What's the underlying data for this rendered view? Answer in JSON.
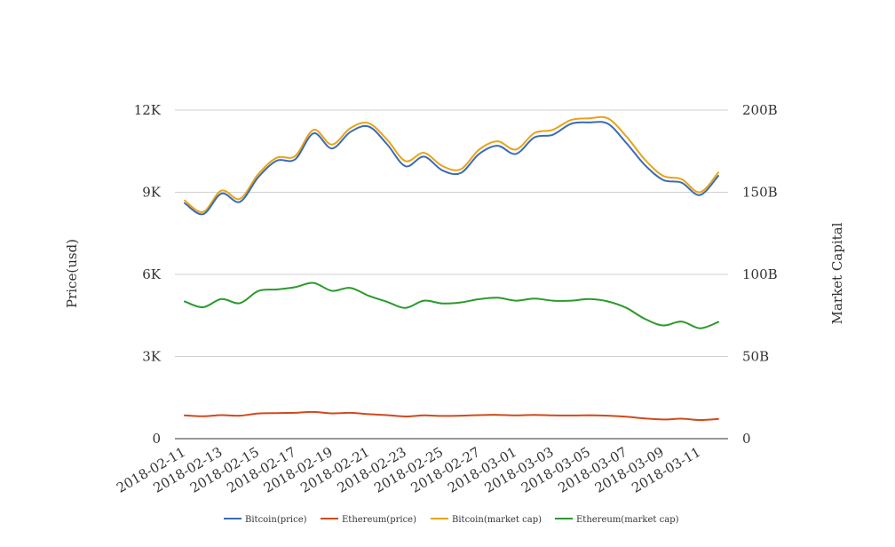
{
  "chart_data": {
    "type": "line",
    "ylabel": "Price(usd)",
    "y2label": "Market Capital",
    "grid": true,
    "legend_position": "bottom-center",
    "y_axis": {
      "min": 0,
      "max": 12000,
      "ticks": [
        0,
        3000,
        6000,
        9000,
        12000
      ],
      "tick_labels": [
        "0",
        "3K",
        "6K",
        "9K",
        "12K"
      ]
    },
    "y2_axis": {
      "min": 0,
      "max": 200000000000,
      "ticks": [
        0,
        50000000000,
        100000000000,
        150000000000,
        200000000000
      ],
      "tick_labels": [
        "0",
        "50B",
        "100B",
        "150B",
        "200B"
      ]
    },
    "x_tick_labels": [
      "2018-02-11",
      "2018-02-13",
      "2018-02-15",
      "2018-02-17",
      "2018-02-19",
      "2018-02-21",
      "2018-02-23",
      "2018-02-25",
      "2018-02-27",
      "2018-03-01",
      "2018-03-03",
      "2018-03-05",
      "2018-03-07",
      "2018-03-09",
      "2018-03-11"
    ],
    "x": [
      "2018-02-11",
      "2018-02-12",
      "2018-02-13",
      "2018-02-14",
      "2018-02-15",
      "2018-02-16",
      "2018-02-17",
      "2018-02-18",
      "2018-02-19",
      "2018-02-20",
      "2018-02-21",
      "2018-02-22",
      "2018-02-23",
      "2018-02-24",
      "2018-02-25",
      "2018-02-26",
      "2018-02-27",
      "2018-02-28",
      "2018-03-01",
      "2018-03-02",
      "2018-03-03",
      "2018-03-04",
      "2018-03-05",
      "2018-03-06",
      "2018-03-07",
      "2018-03-08",
      "2018-03-09",
      "2018-03-10",
      "2018-03-11",
      "2018-03-12"
    ],
    "series": [
      {
        "name": "Bitcoin(price)",
        "axis": "left",
        "color": "#3b6ab5",
        "values": [
          8600,
          8200,
          8950,
          8650,
          9550,
          10150,
          10200,
          11150,
          10600,
          11200,
          11400,
          10750,
          9950,
          10300,
          9800,
          9700,
          10400,
          10700,
          10400,
          11000,
          11100,
          11500,
          11550,
          11500,
          10800,
          10000,
          9450,
          9350,
          8900,
          9600
        ]
      },
      {
        "name": "Ethereum(price)",
        "axis": "left",
        "color": "#d04a1c",
        "values": [
          850,
          820,
          860,
          840,
          920,
          935,
          945,
          975,
          925,
          945,
          895,
          860,
          810,
          850,
          830,
          840,
          860,
          870,
          850,
          865,
          850,
          845,
          855,
          840,
          800,
          740,
          700,
          730,
          680,
          720
        ]
      },
      {
        "name": "Bitcoin(market cap)",
        "axis": "right",
        "color": "#e8a317",
        "values": [
          145000000000,
          138000000000,
          151000000000,
          146000000000,
          161000000000,
          171000000000,
          172000000000,
          188000000000,
          179000000000,
          189000000000,
          192000000000,
          182000000000,
          169000000000,
          174000000000,
          166000000000,
          164000000000,
          176000000000,
          181000000000,
          176000000000,
          186000000000,
          188000000000,
          194000000000,
          195000000000,
          195000000000,
          184000000000,
          170000000000,
          160000000000,
          158000000000,
          150000000000,
          162000000000
        ]
      },
      {
        "name": "Ethereum(market cap)",
        "axis": "right",
        "color": "#2a9a2a",
        "values": [
          83500000000,
          80000000000,
          85000000000,
          82500000000,
          89900000000,
          90800000000,
          92200000000,
          94800000000,
          90000000000,
          91800000000,
          87000000000,
          83300000000,
          79600000000,
          84000000000,
          82300000000,
          82900000000,
          84900000000,
          85800000000,
          84000000000,
          85300000000,
          84000000000,
          84000000000,
          85000000000,
          83500000000,
          79600000000,
          73000000000,
          68900000000,
          71300000000,
          67200000000,
          71000000000
        ]
      }
    ]
  }
}
